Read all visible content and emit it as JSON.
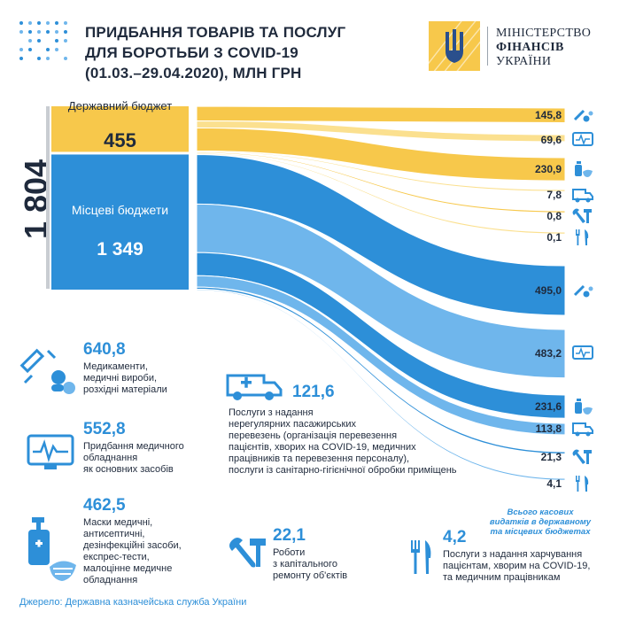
{
  "title": "ПРИДБАННЯ ТОВАРІВ ТА ПОСЛУГ\nДЛЯ БОРОТЬБИ З COVID-19\n(01.03.–29.04.2020), МЛН ГРН",
  "logo": {
    "line1": "МІНІСТЕРСТВО",
    "line2": "ФІНАНСІВ",
    "line3": "УКРАЇНИ"
  },
  "colors": {
    "state": "#f7c84b",
    "state_light": "#fbe08f",
    "local": "#2d8fd8",
    "local_light": "#6fb6ec",
    "text": "#1f2a3c",
    "accent": "#2d8fd8"
  },
  "chart_data": {
    "type": "sankey",
    "total": "1 804",
    "sources": [
      {
        "name": "Державний бюджет",
        "value": 455,
        "label": "455"
      },
      {
        "name": "Місцеві бюджети",
        "value": 1349,
        "label": "1 349"
      }
    ],
    "flows": [
      {
        "source": "Державний бюджет",
        "category": "Медикаменти",
        "value": 145.8,
        "label": "145,8",
        "icon": "syringe-pills-icon"
      },
      {
        "source": "Державний бюджет",
        "category": "Медичне обладнання",
        "value": 69.6,
        "label": "69,6",
        "icon": "heart-monitor-icon"
      },
      {
        "source": "Державний бюджет",
        "category": "Маски, антисептики",
        "value": 230.9,
        "label": "230,9",
        "icon": "sanitizer-mask-icon"
      },
      {
        "source": "Державний бюджет",
        "category": "Перевезення",
        "value": 7.8,
        "label": "7,8",
        "icon": "ambulance-icon"
      },
      {
        "source": "Державний бюджет",
        "category": "Ремонт",
        "value": 0.8,
        "label": "0,8",
        "icon": "repair-tools-icon"
      },
      {
        "source": "Державний бюджет",
        "category": "Харчування",
        "value": 0.1,
        "label": "0,1",
        "icon": "fork-knife-icon"
      },
      {
        "source": "Місцеві бюджети",
        "category": "Медикаменти",
        "value": 495.0,
        "label": "495,0",
        "icon": "syringe-pills-icon"
      },
      {
        "source": "Місцеві бюджети",
        "category": "Медичне обладнання",
        "value": 483.2,
        "label": "483,2",
        "icon": "heart-monitor-icon"
      },
      {
        "source": "Місцеві бюджети",
        "category": "Маски, антисептики",
        "value": 231.6,
        "label": "231,6",
        "icon": "sanitizer-mask-icon"
      },
      {
        "source": "Місцеві бюджети",
        "category": "Перевезення",
        "value": 113.8,
        "label": "113,8",
        "icon": "ambulance-icon"
      },
      {
        "source": "Місцеві бюджети",
        "category": "Ремонт",
        "value": 21.3,
        "label": "21,3",
        "icon": "repair-tools-icon"
      },
      {
        "source": "Місцеві бюджети",
        "category": "Харчування",
        "value": 4.1,
        "label": "4,1",
        "icon": "fork-knife-icon"
      }
    ],
    "categories": [
      {
        "value": "640,8",
        "text": "Медикаменти,\nмедичні вироби,\nрозхідні матеріали",
        "icon": "syringe-pills-icon"
      },
      {
        "value": "552,8",
        "text": "Придбання медичного\nобладнання\nяк основних засобів",
        "icon": "heart-monitor-icon"
      },
      {
        "value": "462,5",
        "text": "Маски медичні,\nантисептичні,\nдезінфекційні засоби,\nекспрес-тести,\nмалоцінне медичне\nобладнання",
        "icon": "sanitizer-mask-icon"
      },
      {
        "value": "121,6",
        "text": "Послуги з надання\nнерегулярних пасажирських\nперевезень (організація перевезення\nпацієнтів, хворих на COVID-19, медичних\nпрацівників та перевезення персоналу),\nпослуги із санітарно-гігієнічної обробки приміщень",
        "icon": "ambulance-icon"
      },
      {
        "value": "22,1",
        "text": "Роботи\nз капітального\nремонту об'єктів",
        "icon": "repair-tools-icon"
      },
      {
        "value": "4,2",
        "text": "Послуги з надання харчування\nпацієнтам, хворим на COVID-19,\nта медичним працівникам",
        "icon": "fork-knife-icon"
      }
    ],
    "note": "Всього касових\nвидатків в державному\nта місцевих бюджетах",
    "source": "Джерело: Державна казначейська служба України"
  }
}
